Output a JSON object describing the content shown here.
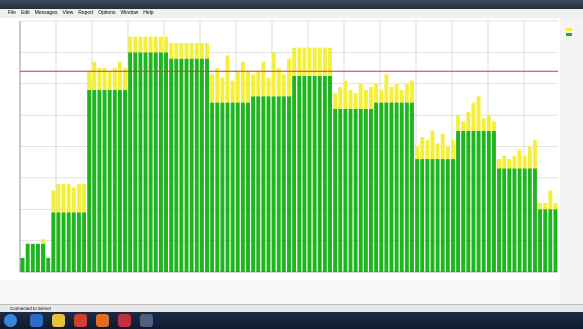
{
  "menu": [
    "File",
    "Edit",
    "Messages",
    "View",
    "Report",
    "Options",
    "Window",
    "Help"
  ],
  "status": "Connected to Server",
  "chart_data": {
    "type": "stacked-bar",
    "ylim": [
      0,
      8
    ],
    "yticks": [
      0,
      1,
      2,
      3,
      4,
      5,
      6,
      7,
      8
    ],
    "grid": true,
    "reference_line": 6.4,
    "reference_color": "#e03030",
    "series": [
      {
        "color": "#1fb51f",
        "values": [
          0.45,
          0.9,
          0.9,
          0.9,
          0.9,
          0.45,
          1.9,
          1.9,
          1.9,
          1.9,
          1.9,
          1.9,
          1.9,
          5.8,
          5.8,
          5.8,
          5.8,
          5.8,
          5.8,
          5.8,
          5.8,
          7.0,
          7.0,
          7.0,
          7.0,
          7.0,
          7.0,
          7.0,
          7.0,
          6.8,
          6.8,
          6.8,
          6.8,
          6.8,
          6.8,
          6.8,
          6.8,
          5.4,
          5.4,
          5.4,
          5.4,
          5.4,
          5.4,
          5.4,
          5.4,
          5.6,
          5.6,
          5.6,
          5.6,
          5.6,
          5.6,
          5.6,
          5.6,
          6.25,
          6.25,
          6.25,
          6.25,
          6.25,
          6.25,
          6.25,
          6.25,
          5.2,
          5.2,
          5.2,
          5.2,
          5.2,
          5.2,
          5.2,
          5.2,
          5.4,
          5.4,
          5.4,
          5.4,
          5.4,
          5.4,
          5.4,
          5.4,
          3.6,
          3.6,
          3.6,
          3.6,
          3.6,
          3.6,
          3.6,
          3.6,
          4.5,
          4.5,
          4.5,
          4.5,
          4.5,
          4.5,
          4.5,
          4.5,
          3.3,
          3.3,
          3.3,
          3.3,
          3.3,
          3.3,
          3.3,
          3.3,
          2.0,
          2.0,
          2.0,
          2.0
        ]
      },
      {
        "color": "#f4f03a",
        "values": [
          0,
          0,
          0,
          0,
          0.15,
          0,
          0.7,
          0.9,
          0.9,
          0.9,
          0.8,
          0.9,
          0.9,
          0.6,
          0.9,
          0.7,
          0.7,
          0.6,
          0.7,
          0.9,
          0.7,
          0.5,
          0.5,
          0.5,
          0.5,
          0.5,
          0.5,
          0.5,
          0.5,
          0.5,
          0.5,
          0.5,
          0.5,
          0.5,
          0.5,
          0.5,
          0.5,
          0.9,
          1.1,
          0.8,
          1.5,
          0.7,
          1.0,
          1.3,
          1.0,
          0.7,
          0.8,
          1.1,
          0.6,
          1.4,
          0.9,
          0.7,
          1.2,
          0.9,
          0.9,
          0.9,
          0.9,
          0.9,
          0.9,
          0.9,
          0.9,
          0.5,
          0.7,
          0.9,
          0.6,
          0.5,
          0.8,
          0.6,
          0.7,
          0.6,
          0.4,
          0.9,
          0.5,
          0.6,
          0.4,
          0.6,
          0.7,
          0.4,
          0.7,
          0.6,
          0.9,
          0.5,
          0.8,
          0.4,
          0.6,
          0.5,
          0.3,
          0.6,
          0.9,
          1.1,
          0.4,
          0.5,
          0.3,
          0.3,
          0.4,
          0.3,
          0.4,
          0.6,
          0.4,
          0.7,
          0.9,
          0.2,
          0.2,
          0.6,
          0.2
        ]
      }
    ]
  }
}
